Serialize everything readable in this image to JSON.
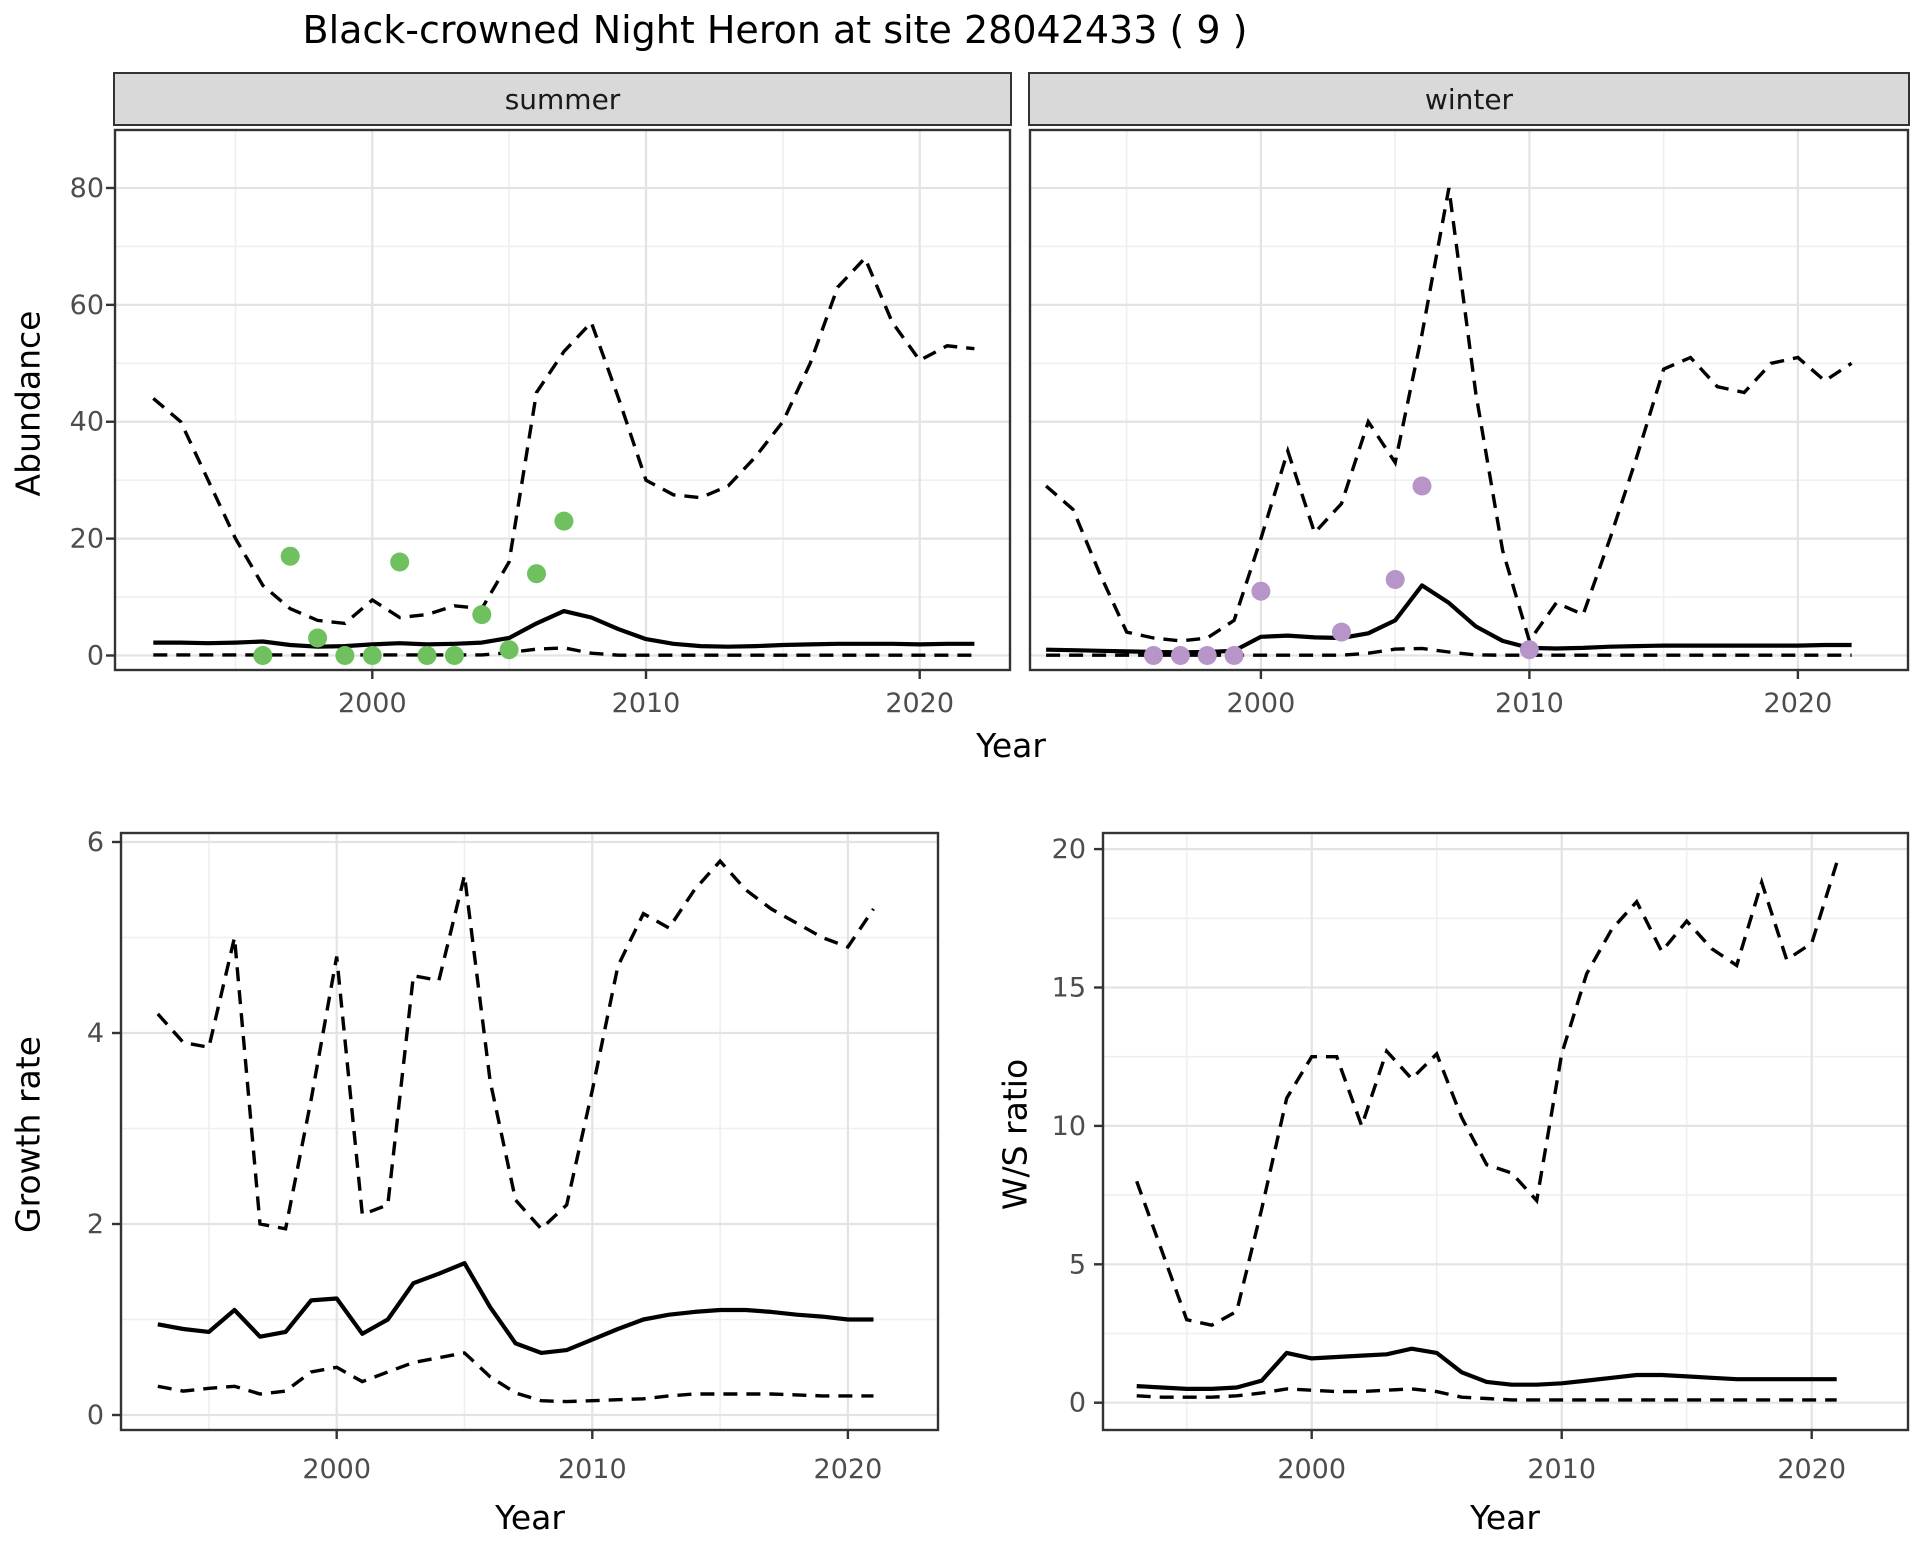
{
  "title": "Black-crowned Night Heron at site 28042433 ( 9 )",
  "style": {
    "summer_point_color": "#6fc05e",
    "winter_point_color": "#b795c8",
    "line_color": "#000000",
    "grid_major_color": "#e3e3e3",
    "grid_minor_color": "#efefef",
    "panel_border_color": "#333333",
    "strip_bg_color": "#d9d9d9",
    "tick_label_color": "#4d4d4d",
    "point_radius": 9.5,
    "fit_style": "solid",
    "ci_style": "dashed"
  },
  "chart_data": [
    {
      "type": "line",
      "facet": "summer",
      "xlabel": "Year",
      "ylabel": "Abundance",
      "x_ticks": [
        2000,
        2010,
        2020
      ],
      "y_ticks": [
        0,
        20,
        40,
        60,
        80
      ],
      "x_minor": [
        1995,
        2005,
        2015
      ],
      "y_minor": [
        10,
        30,
        50,
        70
      ],
      "xlim": [
        1991,
        2023
      ],
      "ylim": [
        0,
        80
      ],
      "legend": "none",
      "years": [
        1992,
        1993,
        1994,
        1995,
        1996,
        1997,
        1998,
        1999,
        2000,
        2001,
        2002,
        2003,
        2004,
        2005,
        2006,
        2007,
        2008,
        2009,
        2010,
        2011,
        2012,
        2013,
        2014,
        2015,
        2016,
        2017,
        2018,
        2019,
        2020,
        2021,
        2022
      ],
      "fit": [
        2.2,
        2.2,
        2.1,
        2.2,
        2.4,
        1.8,
        1.5,
        1.6,
        1.9,
        2.1,
        1.9,
        2.0,
        2.2,
        3.0,
        5.5,
        7.6,
        6.5,
        4.5,
        2.8,
        2.0,
        1.6,
        1.5,
        1.6,
        1.8,
        1.9,
        2.0,
        2.0,
        2.0,
        1.9,
        2.0,
        2.0
      ],
      "ci_upper": [
        44,
        40,
        30,
        20,
        12,
        8,
        6,
        5.5,
        9.5,
        6.5,
        7,
        8.5,
        8,
        16,
        45,
        52,
        57,
        44,
        30,
        27.5,
        27,
        29,
        34,
        40,
        50,
        63,
        68,
        57,
        50.5,
        53,
        52.5
      ],
      "ci_lower": [
        0.1,
        0.1,
        0.1,
        0.1,
        0.1,
        0.1,
        0.1,
        0.1,
        0.1,
        0.1,
        0.1,
        0.1,
        0.1,
        0.5,
        1.1,
        1.3,
        0.4,
        0.05,
        0.05,
        0.05,
        0.05,
        0.05,
        0.05,
        0.05,
        0.05,
        0.05,
        0.05,
        0.05,
        0.05,
        0.05,
        0.05
      ],
      "observations": [
        [
          1996,
          0
        ],
        [
          1997,
          17
        ],
        [
          1998,
          3
        ],
        [
          1999,
          0
        ],
        [
          2000,
          0
        ],
        [
          2001,
          16
        ],
        [
          2002,
          0
        ],
        [
          2003,
          0
        ],
        [
          2004,
          7
        ],
        [
          2005,
          1
        ],
        [
          2006,
          14
        ],
        [
          2007,
          23
        ]
      ]
    },
    {
      "type": "line",
      "facet": "winter",
      "xlabel": "Year",
      "ylabel": "Abundance",
      "x_ticks": [
        2000,
        2010,
        2020
      ],
      "y_ticks": [
        0,
        20,
        40,
        60,
        80
      ],
      "x_minor": [
        1995,
        2005,
        2015
      ],
      "y_minor": [
        10,
        30,
        50,
        70
      ],
      "xlim": [
        1991,
        2024
      ],
      "ylim": [
        0,
        80
      ],
      "legend": "none",
      "years": [
        1992,
        1993,
        1994,
        1995,
        1996,
        1997,
        1998,
        1999,
        2000,
        2001,
        2002,
        2003,
        2004,
        2005,
        2006,
        2007,
        2008,
        2009,
        2010,
        2011,
        2012,
        2013,
        2014,
        2015,
        2016,
        2017,
        2018,
        2019,
        2020,
        2021,
        2022
      ],
      "fit": [
        1.0,
        0.9,
        0.8,
        0.7,
        0.6,
        0.55,
        0.6,
        0.8,
        3.2,
        3.4,
        3.1,
        3.0,
        3.8,
        6.0,
        12.0,
        9.0,
        5.0,
        2.5,
        1.3,
        1.2,
        1.3,
        1.5,
        1.6,
        1.7,
        1.7,
        1.7,
        1.7,
        1.7,
        1.7,
        1.8,
        1.8
      ],
      "ci_upper": [
        29,
        25,
        14,
        4,
        3,
        2.5,
        3,
        6,
        20,
        35,
        21,
        26,
        40,
        33,
        55,
        80,
        45,
        18,
        2.5,
        9,
        7,
        20,
        34,
        49,
        51,
        46,
        45,
        50,
        51,
        47,
        50
      ],
      "ci_lower": [
        0.05,
        0.05,
        0.05,
        0.05,
        0.05,
        0.05,
        0.05,
        0.05,
        0.05,
        0.05,
        0.05,
        0.05,
        0.4,
        1.1,
        1.2,
        0.6,
        0.1,
        0.05,
        0.05,
        0.05,
        0.05,
        0.05,
        0.05,
        0.05,
        0.05,
        0.05,
        0.05,
        0.05,
        0.05,
        0.05,
        0.05
      ],
      "observations": [
        [
          1996,
          0
        ],
        [
          1997,
          0
        ],
        [
          1998,
          0
        ],
        [
          1999,
          0
        ],
        [
          2000,
          11
        ],
        [
          2003,
          4
        ],
        [
          2005,
          13
        ],
        [
          2006,
          29
        ],
        [
          2010,
          1
        ]
      ]
    },
    {
      "type": "line",
      "facet": "",
      "xlabel": "Year",
      "ylabel": "Growth rate",
      "x_ticks": [
        2000,
        2010,
        2020
      ],
      "y_ticks": [
        0,
        2,
        4,
        6
      ],
      "x_minor": [
        1995,
        2005,
        2015
      ],
      "y_minor": [
        1,
        3,
        5
      ],
      "xlim": [
        1992,
        2023
      ],
      "ylim": [
        0,
        6
      ],
      "legend": "none",
      "years": [
        1993,
        1994,
        1995,
        1996,
        1997,
        1998,
        1999,
        2000,
        2001,
        2002,
        2003,
        2004,
        2005,
        2006,
        2007,
        2008,
        2009,
        2010,
        2011,
        2012,
        2013,
        2014,
        2015,
        2016,
        2017,
        2018,
        2019,
        2020,
        2021
      ],
      "fit": [
        0.95,
        0.9,
        0.87,
        1.1,
        0.82,
        0.87,
        1.2,
        1.22,
        0.85,
        1.0,
        1.38,
        1.48,
        1.59,
        1.13,
        0.75,
        0.65,
        0.68,
        0.79,
        0.9,
        1.0,
        1.05,
        1.08,
        1.1,
        1.1,
        1.08,
        1.05,
        1.03,
        1.0,
        1.0
      ],
      "ci_upper": [
        4.2,
        3.9,
        3.85,
        5.0,
        2.0,
        1.95,
        3.3,
        4.8,
        2.1,
        2.2,
        4.6,
        4.55,
        5.65,
        3.5,
        2.25,
        1.95,
        2.2,
        3.4,
        4.7,
        5.25,
        5.1,
        5.5,
        5.8,
        5.5,
        5.3,
        5.15,
        5.0,
        4.9,
        5.3
      ],
      "ci_lower": [
        0.3,
        0.25,
        0.28,
        0.3,
        0.22,
        0.25,
        0.45,
        0.5,
        0.35,
        0.45,
        0.55,
        0.6,
        0.65,
        0.4,
        0.23,
        0.15,
        0.14,
        0.15,
        0.16,
        0.17,
        0.2,
        0.22,
        0.22,
        0.22,
        0.22,
        0.21,
        0.2,
        0.2,
        0.2
      ],
      "observations": []
    },
    {
      "type": "line",
      "facet": "",
      "xlabel": "Year",
      "ylabel": "W/S ratio",
      "x_ticks": [
        2000,
        2010,
        2020
      ],
      "y_ticks": [
        0,
        5,
        10,
        15,
        20
      ],
      "x_minor": [
        1995,
        2005,
        2015
      ],
      "y_minor": [
        2.5,
        7.5,
        12.5,
        17.5
      ],
      "xlim": [
        1992,
        2024
      ],
      "ylim": [
        0,
        20
      ],
      "legend": "none",
      "years": [
        1993,
        1994,
        1995,
        1996,
        1997,
        1998,
        1999,
        2000,
        2001,
        2002,
        2003,
        2004,
        2005,
        2006,
        2007,
        2008,
        2009,
        2010,
        2011,
        2012,
        2013,
        2014,
        2015,
        2016,
        2017,
        2018,
        2019,
        2020,
        2021
      ],
      "fit": [
        0.6,
        0.55,
        0.5,
        0.5,
        0.55,
        0.8,
        1.8,
        1.6,
        1.65,
        1.7,
        1.75,
        1.95,
        1.8,
        1.1,
        0.75,
        0.65,
        0.65,
        0.7,
        0.8,
        0.9,
        1.0,
        1.0,
        0.95,
        0.9,
        0.85,
        0.85,
        0.85,
        0.85,
        0.85
      ],
      "ci_upper": [
        8.0,
        5.5,
        3.0,
        2.8,
        3.3,
        7.0,
        11.0,
        12.5,
        12.5,
        10.0,
        12.7,
        11.7,
        12.6,
        10.3,
        8.6,
        8.3,
        7.3,
        12.6,
        15.5,
        17.1,
        18.1,
        16.3,
        17.4,
        16.4,
        15.8,
        18.8,
        16.0,
        16.6,
        19.5
      ],
      "ci_lower": [
        0.25,
        0.2,
        0.2,
        0.2,
        0.25,
        0.35,
        0.5,
        0.45,
        0.4,
        0.4,
        0.45,
        0.5,
        0.4,
        0.2,
        0.15,
        0.1,
        0.1,
        0.1,
        0.1,
        0.1,
        0.1,
        0.1,
        0.1,
        0.1,
        0.1,
        0.1,
        0.1,
        0.1,
        0.1
      ],
      "observations": []
    }
  ]
}
